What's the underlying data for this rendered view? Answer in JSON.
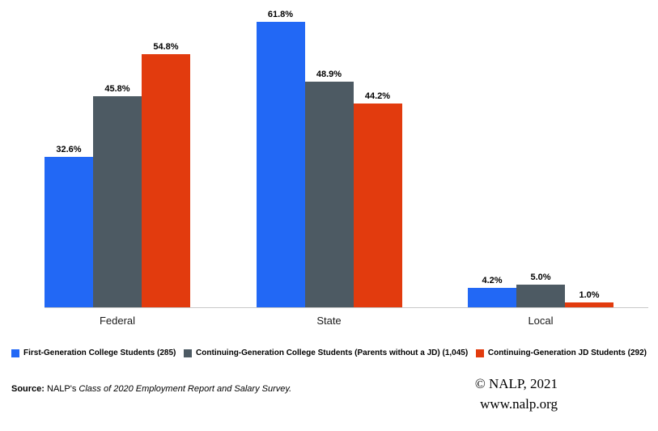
{
  "chart_data": {
    "type": "bar",
    "title": "",
    "categories": [
      "Federal",
      "State",
      "Local"
    ],
    "series": [
      {
        "name": "First-Generation College Students (285)",
        "color": "#2268f5",
        "values": [
          32.6,
          61.8,
          4.2
        ]
      },
      {
        "name": "Continuing-Generation College Students (Parents without a JD) (1,045)",
        "color": "#4d5a63",
        "values": [
          45.8,
          48.9,
          5.0
        ]
      },
      {
        "name": "Continuing-Generation JD Students (292)",
        "color": "#e23b0e",
        "values": [
          54.8,
          44.2,
          1.0
        ]
      }
    ],
    "value_suffix": "%",
    "xlabel": "",
    "ylabel": "",
    "ylim": [
      0,
      66.6
    ],
    "grid": false,
    "legend_position": "bottom"
  },
  "footer": {
    "source_label": "Source:",
    "source_text": " NALP's ",
    "source_italic": "Class of 2020 Employment Report and Salary Survey.",
    "credit_line1": "© NALP, 2021",
    "credit_line2": "www.nalp.org"
  }
}
